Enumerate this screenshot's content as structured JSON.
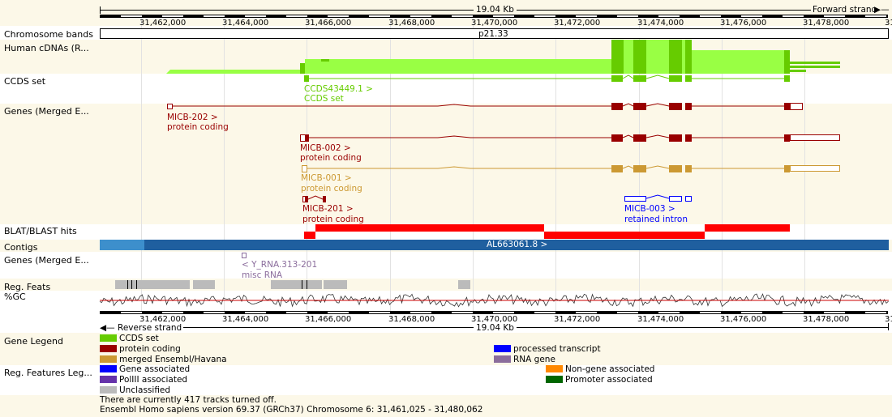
{
  "top_scale": {
    "size": "19.04 Kb",
    "strand": "Forward strand"
  },
  "bottom_scale": {
    "size": "19.04 Kb",
    "strand": "Reverse strand"
  },
  "coords": [
    "31,462,000",
    "31,464,000",
    "31,466,000",
    "31,468,000",
    "31,470,000",
    "31,472,000",
    "31,474,000",
    "31,476,000",
    "31,478,000",
    "31"
  ],
  "tracks": {
    "chromosome_bands": "Chromosome bands",
    "human_cdnas": "Human cDNAs (R...",
    "ccds_set": "CCDS set",
    "genes_merged": "Genes (Merged E...",
    "blat": "BLAT/BLAST hits",
    "contigs": "Contigs",
    "genes_merged_2": "Genes (Merged E...",
    "reg_feats": "Reg. Feats",
    "gc": "%GC",
    "gene_legend": "Gene Legend",
    "reg_legend": "Reg. Features Leg..."
  },
  "band_name": "p21.33",
  "ccds": {
    "name": "CCDS43449.1 >",
    "type": "CCDS set"
  },
  "genes": [
    {
      "name": "MICB-202 >",
      "biotype": "protein coding"
    },
    {
      "name": "MICB-002 >",
      "biotype": "protein coding"
    },
    {
      "name": "MICB-001 >",
      "biotype": "protein coding"
    },
    {
      "name": "MICB-201 >",
      "biotype": "protein coding"
    },
    {
      "name": "MICB-003 >",
      "biotype": "retained intron"
    }
  ],
  "contig_name": "AL663061.8 >",
  "rna_gene": {
    "name": "< Y_RNA.313-201",
    "biotype": "misc RNA"
  },
  "gene_legend": [
    {
      "label": "CCDS set",
      "color": "#66cc00"
    },
    {
      "label": "protein coding",
      "color": "#990000"
    },
    {
      "label": "merged Ensembl/Havana",
      "color": "#cc9933"
    },
    {
      "label": "processed transcript",
      "color": "#0000ff"
    },
    {
      "label": "RNA gene",
      "color": "#8b6d9c"
    }
  ],
  "reg_legend": [
    {
      "label": "Gene associated",
      "color": "#0000ff"
    },
    {
      "label": "PolIII associated",
      "color": "#6633aa"
    },
    {
      "label": "Unclassified",
      "color": "#bbbbbb"
    },
    {
      "label": "Non-gene  associated",
      "color": "#ff8800"
    },
    {
      "label": "Promoter associated",
      "color": "#006600"
    }
  ],
  "footer": {
    "tracks_off": "There are currently 417 tracks turned off.",
    "version": "Ensembl Homo sapiens version 69.37 (GRCh37) Chromosome 6: 31,461,025 - 31,480,062"
  },
  "colors": {
    "cdna": "#99ff44",
    "cdna_dark": "#66cc00",
    "ccds": "#66cc00",
    "protein_coding": "#990000",
    "merged": "#cc9933",
    "retained": "#0000ff",
    "blat": "#ff0000",
    "contig_dark": "#1f5f9f",
    "contig_light": "#3d8fcc",
    "rna": "#8b6d9c",
    "regfeat": "#bbbbbb",
    "gc_line": "#cc0000",
    "band_alt": "#fcf8e8"
  }
}
